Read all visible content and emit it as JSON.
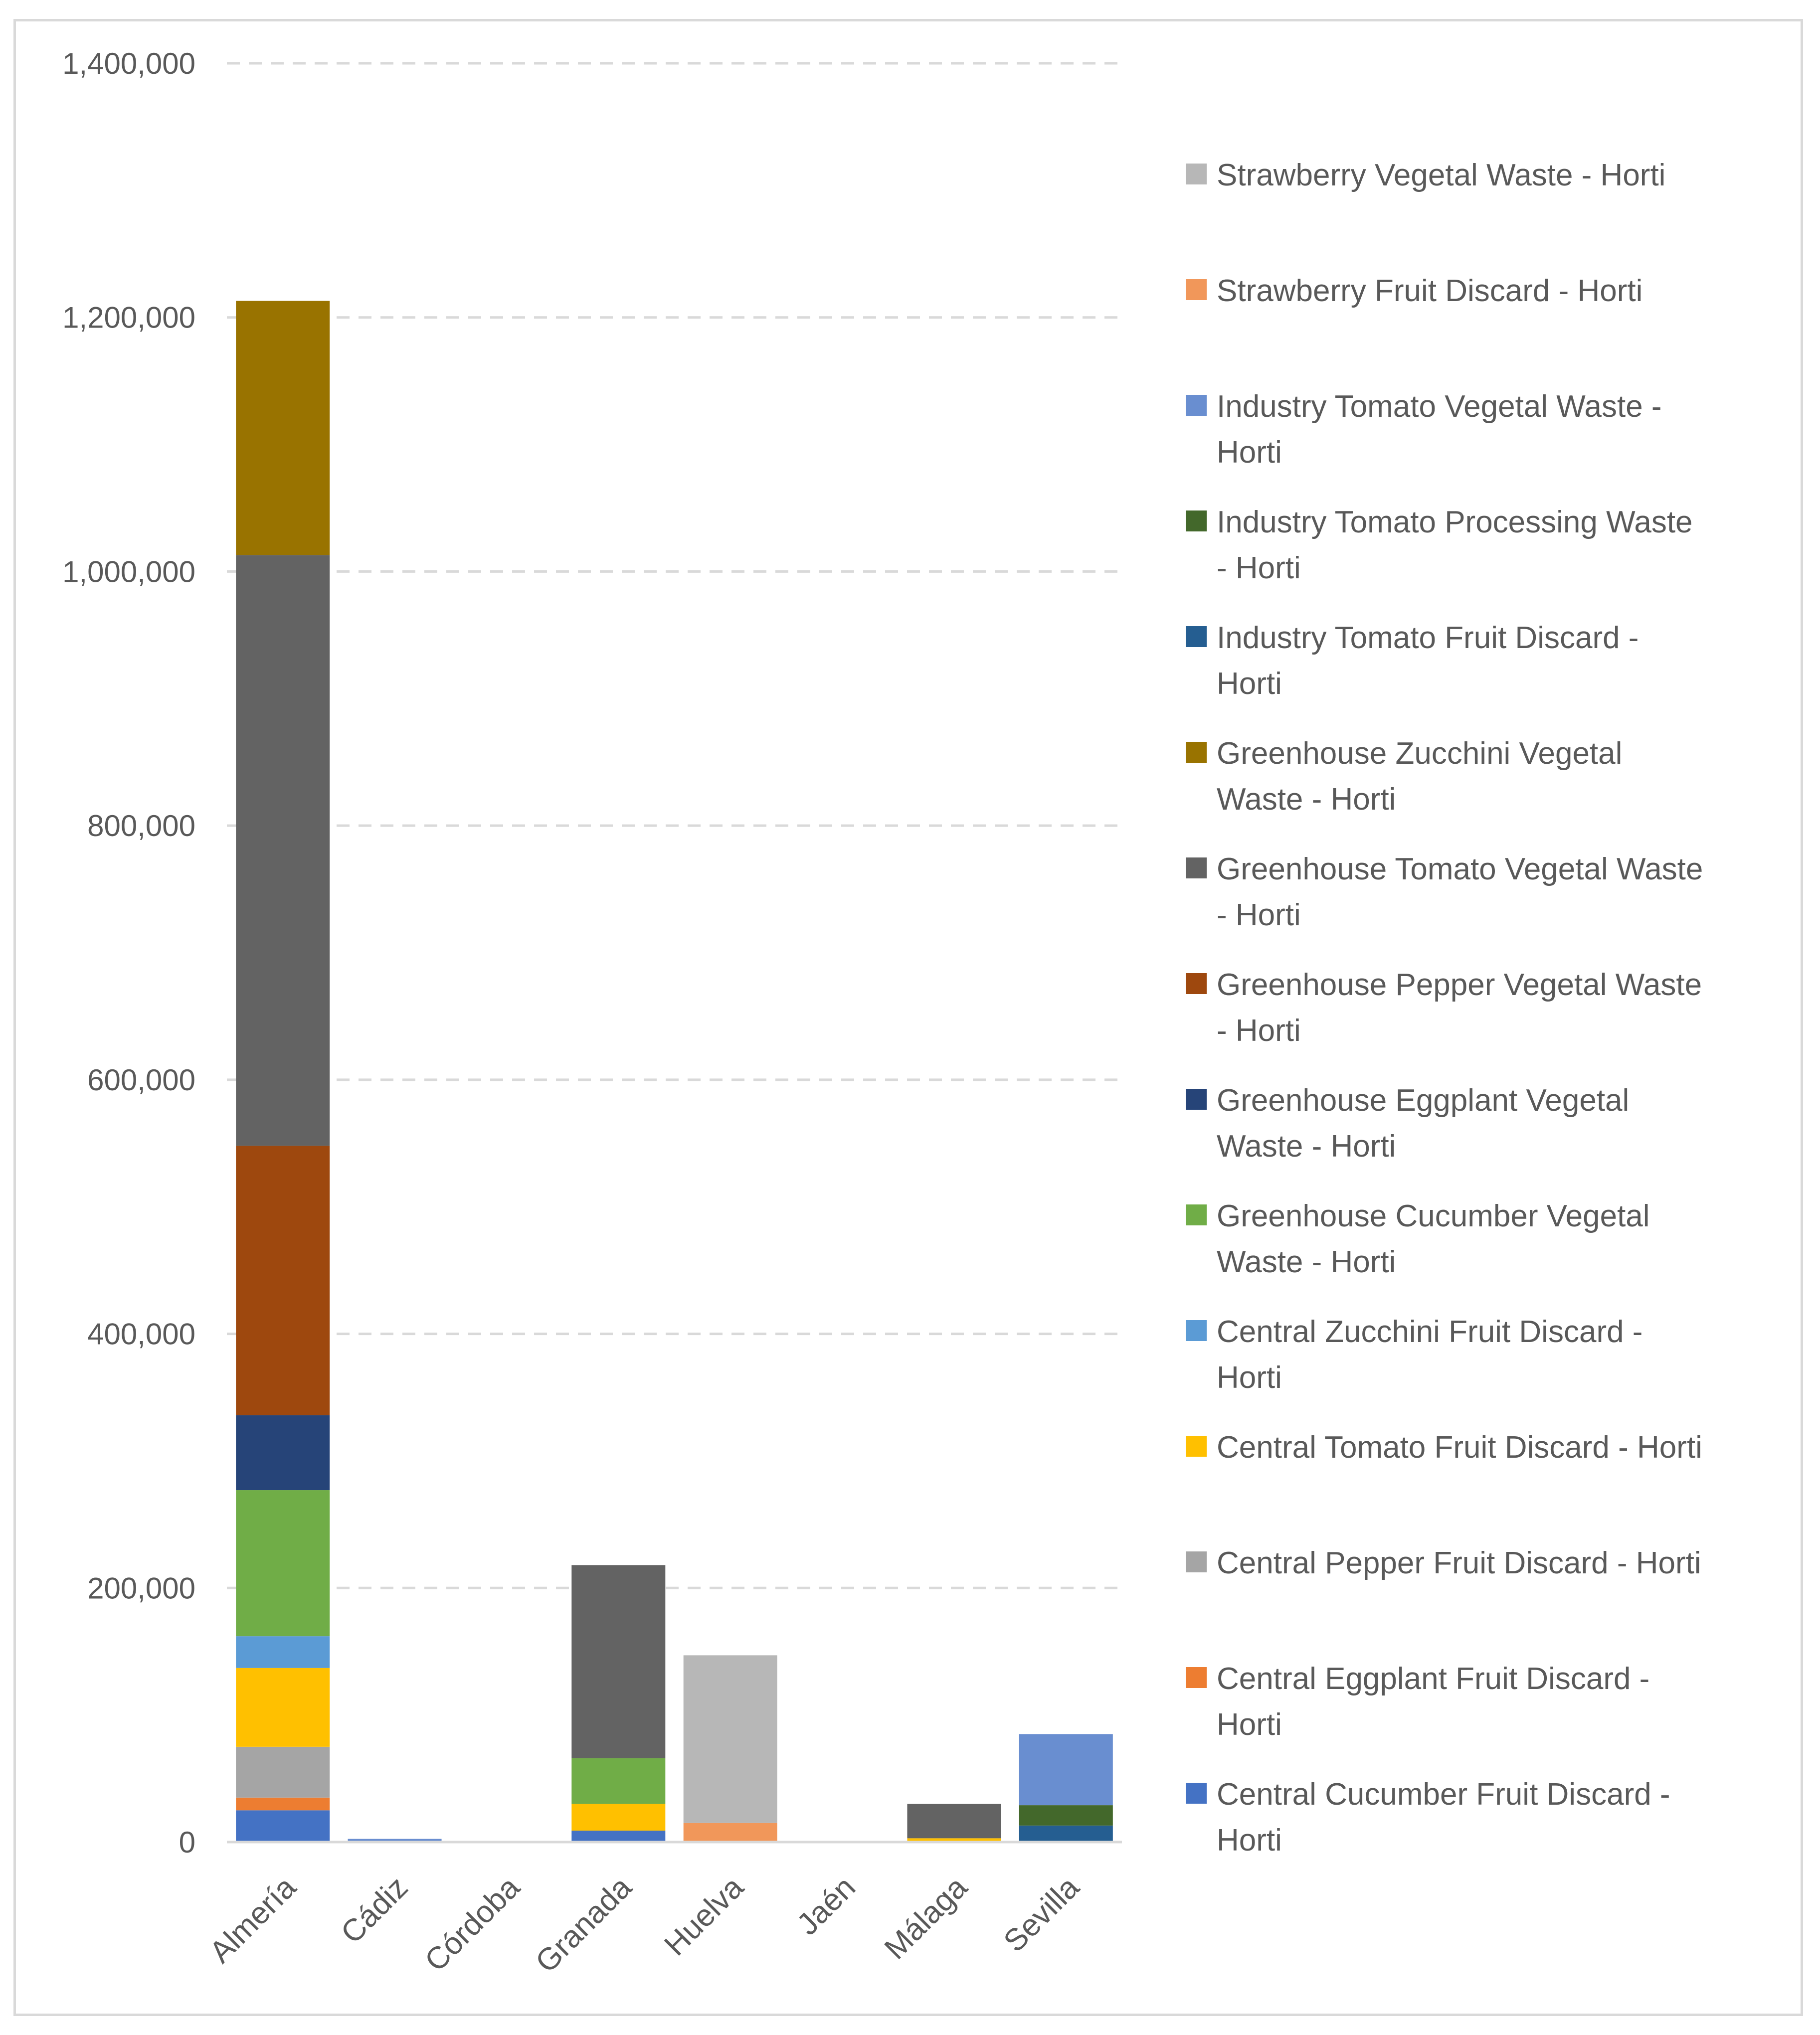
{
  "chart_data": {
    "type": "bar",
    "stacked": true,
    "title": "",
    "xlabel": "",
    "ylabel": "",
    "ylim": [
      0,
      1400000
    ],
    "yticks": [
      0,
      200000,
      400000,
      600000,
      800000,
      1000000,
      1200000,
      1400000
    ],
    "ytick_labels": [
      "0",
      "200,000",
      "400,000",
      "600,000",
      "800,000",
      "1,000,000",
      "1,200,000",
      "1,400,000"
    ],
    "grid": true,
    "legend_position": "right",
    "categories": [
      "Almería",
      "Cádiz",
      "Córdoba",
      "Granada",
      "Huelva",
      "Jaén",
      "Málaga",
      "Sevilla"
    ],
    "series": [
      {
        "name": "Central Cucumber Fruit Discard - Horti",
        "color": "#4472C4",
        "values": [
          25000,
          0,
          0,
          9000,
          0,
          0,
          0,
          0
        ]
      },
      {
        "name": "Central Eggplant Fruit Discard - Horti",
        "color": "#ED7D31",
        "values": [
          10000,
          0,
          0,
          0,
          0,
          0,
          0,
          0
        ]
      },
      {
        "name": "Central Pepper Fruit Discard - Horti",
        "color": "#A5A5A5",
        "values": [
          40000,
          0,
          0,
          0,
          0,
          0,
          0,
          0
        ]
      },
      {
        "name": "Central Tomato Fruit Discard - Horti",
        "color": "#FFC000",
        "values": [
          62000,
          0,
          0,
          21000,
          0,
          0,
          3000,
          0
        ]
      },
      {
        "name": "Central Zucchini Fruit Discard - Horti",
        "color": "#5B9BD5",
        "values": [
          25000,
          0,
          0,
          0,
          0,
          0,
          0,
          0
        ]
      },
      {
        "name": "Greenhouse Cucumber Vegetal Waste - Horti",
        "color": "#70AD47",
        "values": [
          115000,
          0,
          0,
          36000,
          0,
          0,
          0,
          0
        ]
      },
      {
        "name": "Greenhouse Eggplant Vegetal Waste - Horti",
        "color": "#264478",
        "values": [
          59000,
          0,
          0,
          0,
          0,
          0,
          0,
          0
        ]
      },
      {
        "name": "Greenhouse Pepper Vegetal Waste - Horti",
        "color": "#9E480E",
        "values": [
          212000,
          0,
          0,
          0,
          0,
          0,
          0,
          0
        ]
      },
      {
        "name": "Greenhouse Tomato Vegetal Waste - Horti",
        "color": "#636363",
        "values": [
          465000,
          0,
          0,
          152000,
          0,
          0,
          27000,
          0
        ]
      },
      {
        "name": "Greenhouse Zucchini Vegetal Waste - Horti",
        "color": "#997300",
        "values": [
          200000,
          0,
          0,
          0,
          0,
          0,
          0,
          0
        ]
      },
      {
        "name": "Industry Tomato Fruit Discard - Horti",
        "color": "#255E91",
        "values": [
          0,
          0,
          0,
          0,
          0,
          0,
          0,
          13000
        ]
      },
      {
        "name": "Industry Tomato Processing Waste - Horti",
        "color": "#43682B",
        "values": [
          0,
          0,
          0,
          0,
          0,
          0,
          0,
          16000
        ]
      },
      {
        "name": "Industry Tomato Vegetal Waste - Horti",
        "color": "#698ED0",
        "values": [
          0,
          2500,
          0,
          0,
          0,
          0,
          0,
          56000
        ]
      },
      {
        "name": "Strawberry Fruit Discard - Horti",
        "color": "#F1975A",
        "values": [
          0,
          0,
          0,
          0,
          15000,
          0,
          0,
          0
        ]
      },
      {
        "name": "Strawberry Vegetal Waste - Horti",
        "color": "#B7B7B7",
        "values": [
          0,
          0,
          0,
          0,
          132000,
          0,
          0,
          0
        ]
      }
    ],
    "legend": [
      {
        "lines": [
          "Strawberry Vegetal Waste - Horti"
        ],
        "series_index": 14
      },
      {
        "lines": [
          "Strawberry Fruit Discard - Horti"
        ],
        "series_index": 13
      },
      {
        "lines": [
          "Industry Tomato Vegetal Waste -",
          "Horti"
        ],
        "series_index": 12
      },
      {
        "lines": [
          "Industry Tomato Processing Waste",
          "- Horti"
        ],
        "series_index": 11
      },
      {
        "lines": [
          "Industry Tomato Fruit Discard -",
          "Horti"
        ],
        "series_index": 10
      },
      {
        "lines": [
          "Greenhouse Zucchini Vegetal",
          "Waste - Horti"
        ],
        "series_index": 9
      },
      {
        "lines": [
          "Greenhouse Tomato Vegetal Waste",
          "- Horti"
        ],
        "series_index": 8
      },
      {
        "lines": [
          "Greenhouse Pepper Vegetal Waste",
          "- Horti"
        ],
        "series_index": 7
      },
      {
        "lines": [
          "Greenhouse Eggplant Vegetal",
          "Waste - Horti"
        ],
        "series_index": 6
      },
      {
        "lines": [
          "Greenhouse Cucumber Vegetal",
          "Waste - Horti"
        ],
        "series_index": 5
      },
      {
        "lines": [
          "Central Zucchini Fruit Discard -",
          "Horti"
        ],
        "series_index": 4
      },
      {
        "lines": [
          "Central Tomato Fruit Discard - Horti"
        ],
        "series_index": 3
      },
      {
        "lines": [
          "Central Pepper Fruit Discard - Horti"
        ],
        "series_index": 2
      },
      {
        "lines": [
          "Central Eggplant Fruit Discard -",
          "Horti"
        ],
        "series_index": 1
      },
      {
        "lines": [
          "Central Cucumber Fruit Discard -",
          "Horti"
        ],
        "series_index": 0
      }
    ]
  }
}
